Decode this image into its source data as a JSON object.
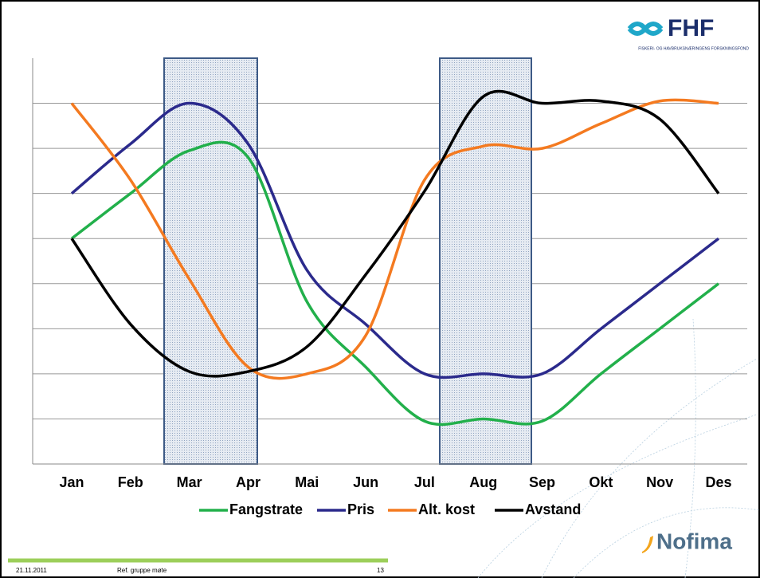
{
  "slide": {
    "logo": "FHF",
    "logo_subtitle": "FISKERI- OG HAVBRUKSNÆRINGENS FORSKNINGSFOND",
    "date": "21.11.2011",
    "footer": "Ref. gruppe møte",
    "page": "13",
    "brand": "Nofima"
  },
  "chart_data": {
    "type": "line",
    "categories": [
      "Jan",
      "Feb",
      "Mar",
      "Apr",
      "Mai",
      "Jun",
      "Jul",
      "Aug",
      "Sep",
      "Okt",
      "Nov",
      "Des"
    ],
    "series": [
      {
        "name": "Fangstrate",
        "color": "#22b04b",
        "values": [
          5.0,
          6.0,
          6.95,
          6.8,
          3.6,
          2.15,
          0.95,
          1.0,
          0.95,
          2.0,
          3.0,
          4.0
        ]
      },
      {
        "name": "Pris",
        "color": "#2b2a8c",
        "values": [
          6.0,
          7.1,
          8.0,
          7.1,
          4.3,
          3.1,
          2.0,
          2.0,
          2.0,
          3.0,
          4.0,
          5.0
        ]
      },
      {
        "name": "Alt. kost",
        "color": "#f47a20",
        "values": [
          8.0,
          6.3,
          4.1,
          2.15,
          2.0,
          2.85,
          6.3,
          7.05,
          7.0,
          7.55,
          8.05,
          8.0
        ]
      },
      {
        "name": "Avstand",
        "color": "#000000",
        "values": [
          5.0,
          3.1,
          2.05,
          2.05,
          2.6,
          4.2,
          6.05,
          8.15,
          8.0,
          8.05,
          7.65,
          6.0
        ]
      }
    ],
    "ylim": [
      0,
      9
    ],
    "yticks": [
      1,
      2,
      3,
      4,
      5,
      6,
      7,
      8
    ],
    "grid": true,
    "legend": "bottom"
  }
}
